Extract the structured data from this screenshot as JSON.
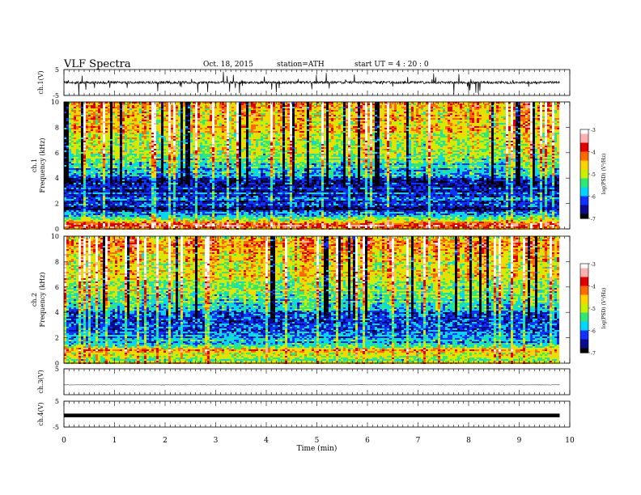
{
  "header": {
    "title": "VLF  Spectra",
    "date": "Oct. 18, 2015",
    "station": "station=ATH",
    "start": "start  UT  =   4  : 20 : 0"
  },
  "chart_data": {
    "type": "heatmap",
    "xlabel": "Time  (min)",
    "xlim": [
      0,
      10
    ],
    "xticks": [
      "0",
      "1",
      "2",
      "3",
      "4",
      "5",
      "6",
      "7",
      "8",
      "9",
      "10"
    ],
    "data_end_min": 9.8,
    "panels": [
      {
        "id": "ch1-waveform",
        "type": "line",
        "ylabel": "ch.1(V)",
        "ylim": [
          -5,
          5
        ],
        "yticks": [
          "5",
          "-5"
        ],
        "baseline": 0,
        "noise_amplitude": 1.0,
        "spike_amplitude": 4.5
      },
      {
        "id": "ch1-spectrogram",
        "type": "heatmap",
        "ylabel_top": "ch.1",
        "ylabel": "Frequency  (kHz)",
        "ylim": [
          0,
          10
        ],
        "yticks": [
          "0",
          "2",
          "4",
          "6",
          "8",
          "10"
        ],
        "colorbar": {
          "label": "log(PSD) (V²/Hz)",
          "range": [
            -7,
            -3
          ],
          "ticks": [
            "-3",
            "-4",
            "-5",
            "-6",
            "-7"
          ]
        },
        "spectrum_profile": [
          {
            "freq_khz": 0.0,
            "log_psd": -4.8
          },
          {
            "freq_khz": 0.3,
            "log_psd": -3.6
          },
          {
            "freq_khz": 0.8,
            "log_psd": -5.2
          },
          {
            "freq_khz": 1.5,
            "log_psd": -6.6
          },
          {
            "freq_khz": 2.5,
            "log_psd": -6.2
          },
          {
            "freq_khz": 3.5,
            "log_psd": -6.6
          },
          {
            "freq_khz": 4.5,
            "log_psd": -5.8
          },
          {
            "freq_khz": 6.0,
            "log_psd": -5.0
          },
          {
            "freq_khz": 8.0,
            "log_psd": -4.6
          },
          {
            "freq_khz": 10.0,
            "log_psd": -4.4
          }
        ]
      },
      {
        "id": "ch2-spectrogram",
        "type": "heatmap",
        "ylabel_top": "ch.2",
        "ylabel": "Frequency  (kHz)",
        "ylim": [
          0,
          10
        ],
        "yticks": [
          "0",
          "2",
          "4",
          "6",
          "8",
          "10"
        ],
        "colorbar": {
          "label": "log(PSD) (V²/Hz)",
          "range": [
            -7,
            -3
          ],
          "ticks": [
            "-3",
            "-4",
            "-5",
            "-6",
            "-7"
          ]
        },
        "spectrum_profile": [
          {
            "freq_khz": 0.0,
            "log_psd": -4.6
          },
          {
            "freq_khz": 0.3,
            "log_psd": -5.4
          },
          {
            "freq_khz": 1.0,
            "log_psd": -4.4
          },
          {
            "freq_khz": 1.5,
            "log_psd": -5.8
          },
          {
            "freq_khz": 2.5,
            "log_psd": -6.2
          },
          {
            "freq_khz": 3.5,
            "log_psd": -6.5
          },
          {
            "freq_khz": 4.5,
            "log_psd": -5.6
          },
          {
            "freq_khz": 6.0,
            "log_psd": -5.0
          },
          {
            "freq_khz": 8.0,
            "log_psd": -4.6
          },
          {
            "freq_khz": 10.0,
            "log_psd": -4.4
          }
        ]
      },
      {
        "id": "ch3-waveform",
        "type": "line",
        "ylabel": "ch.3(V)",
        "ylim": [
          -5,
          5
        ],
        "yticks": [
          "5"
        ],
        "baseline": -1.2,
        "noise_amplitude": 0.1,
        "spike_amplitude": 0.2
      },
      {
        "id": "ch4-waveform",
        "type": "line",
        "ylabel": "ch.4(V)",
        "ylim": [
          -5,
          5
        ],
        "yticks": [
          "5",
          "-5"
        ],
        "baseline": -0.5,
        "noise_amplitude": 0.15,
        "spike_amplitude": 0.15
      }
    ]
  },
  "colors": {
    "background": "#ffffff",
    "axis": "#000000",
    "colormap": [
      "#000000",
      "#0a0a8c",
      "#1030ff",
      "#00d7ff",
      "#2ee878",
      "#c8f000",
      "#ffd200",
      "#ff6a00",
      "#e00000",
      "#ffb0b0",
      "#ffffff"
    ]
  }
}
